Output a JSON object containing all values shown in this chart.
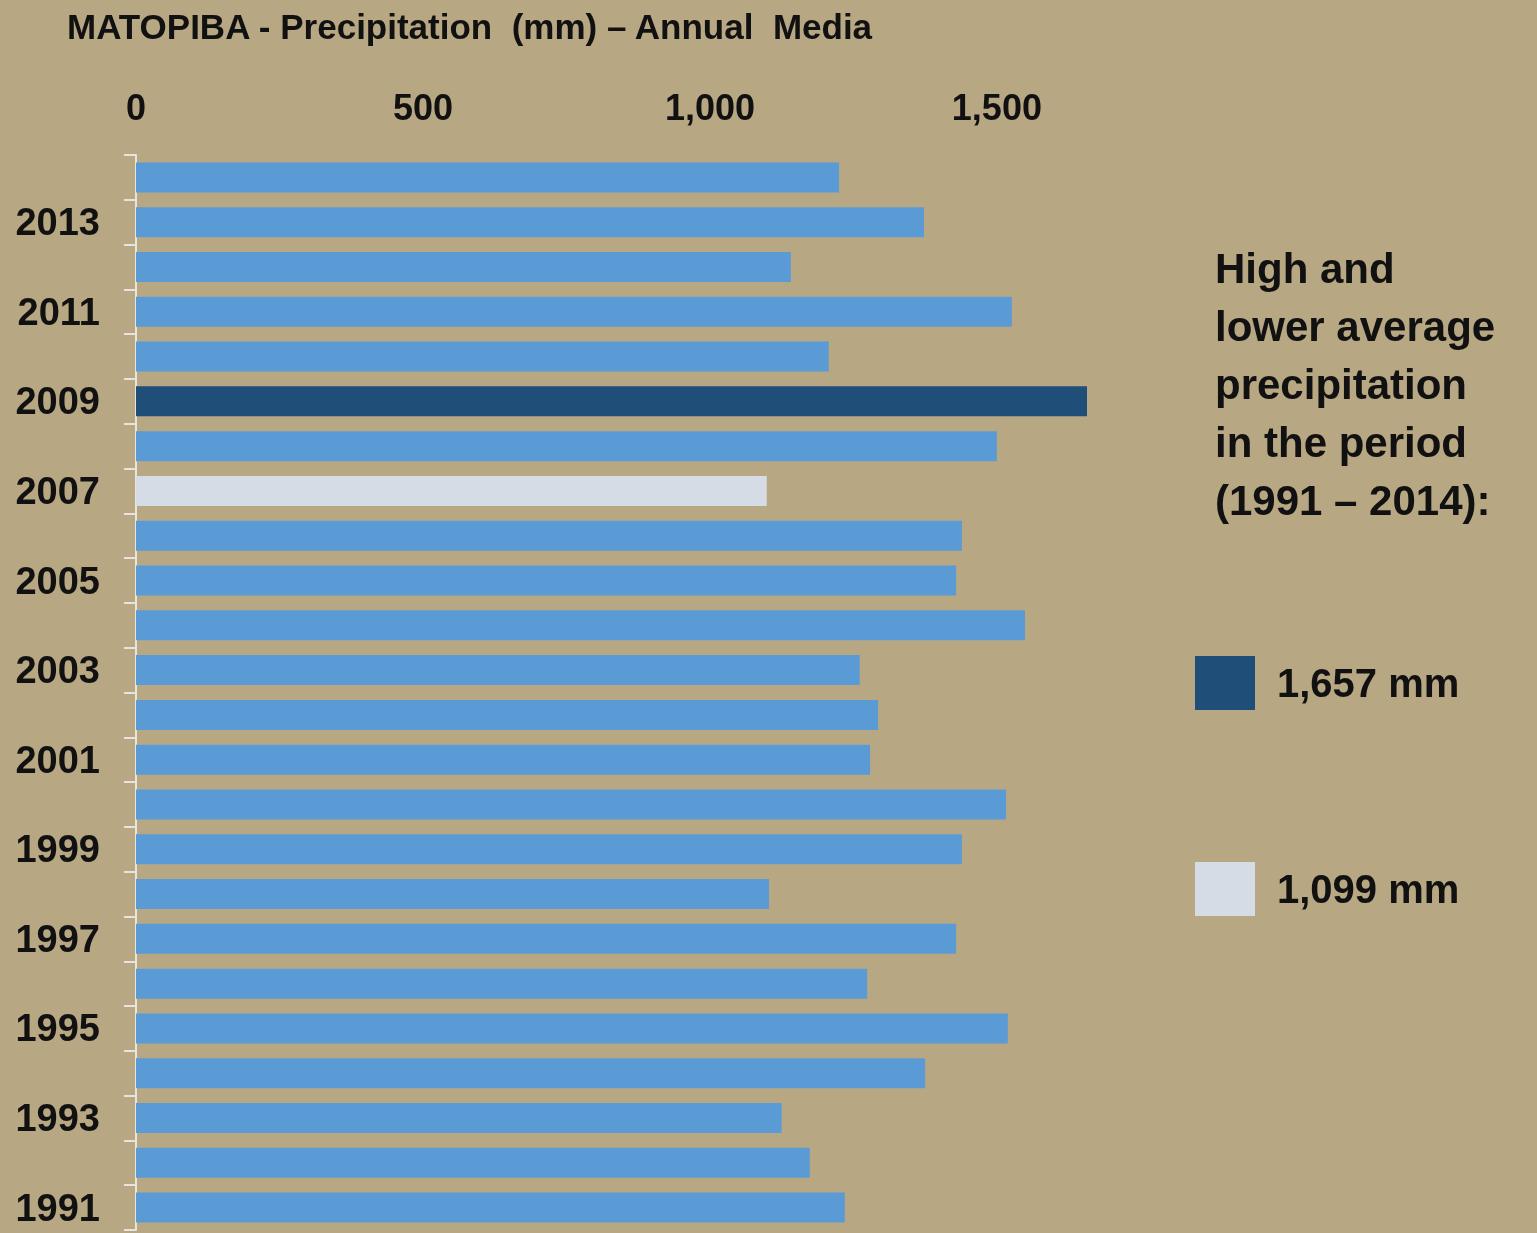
{
  "chart_data": {
    "type": "bar",
    "orientation": "horizontal",
    "title": "MATOPIBA - Precipitation  (mm) – Annual  Media",
    "categories": [
      null,
      "2013",
      null,
      "2011",
      null,
      "2009",
      null,
      "2007",
      null,
      "2005",
      null,
      "2003",
      null,
      "2001",
      null,
      "1999",
      null,
      "1997",
      null,
      "1995",
      null,
      "1993",
      null,
      "1991"
    ],
    "values": [
      1225,
      1373,
      1141,
      1526,
      1207,
      1657,
      1500,
      1099,
      1439,
      1429,
      1549,
      1261,
      1293,
      1279,
      1516,
      1439,
      1103,
      1429,
      1274,
      1519,
      1375,
      1125,
      1174,
      1235
    ],
    "colors": [
      "#5b9bd5",
      "#5b9bd5",
      "#5b9bd5",
      "#5b9bd5",
      "#5b9bd5",
      "#1f4e79",
      "#5b9bd5",
      "#d6dce5",
      "#5b9bd5",
      "#5b9bd5",
      "#5b9bd5",
      "#5b9bd5",
      "#5b9bd5",
      "#5b9bd5",
      "#5b9bd5",
      "#5b9bd5",
      "#5b9bd5",
      "#5b9bd5",
      "#5b9bd5",
      "#5b9bd5",
      "#5b9bd5",
      "#5b9bd5",
      "#5b9bd5",
      "#5b9bd5"
    ],
    "xlim": [
      0,
      1657
    ],
    "xticks": [
      0,
      500,
      {
        "value": 1000,
        "label": "1,000"
      },
      {
        "value": 1500,
        "label": "1,500"
      }
    ],
    "grid": false,
    "annotations": [
      "High and lower average precipitation in the period (1991 – 2014):",
      "1,657 mm",
      "1,099 mm"
    ]
  }
}
